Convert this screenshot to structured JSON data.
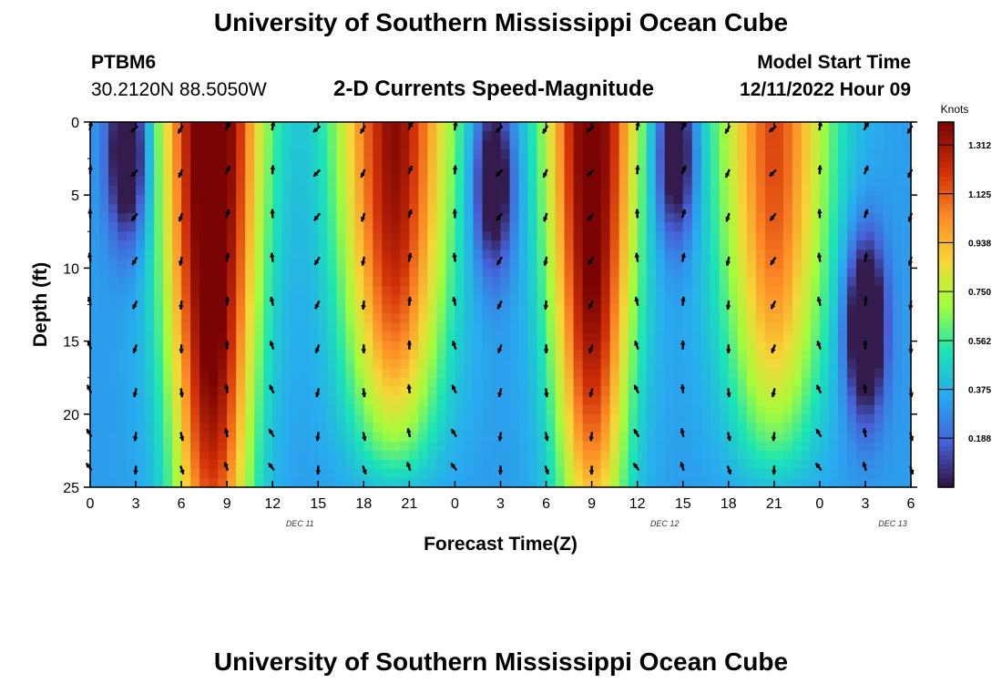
{
  "header": {
    "title": "University of Southern Mississippi Ocean Cube",
    "station": "PTBM6",
    "coords": "30.2120N  88.5050W",
    "plot_title": "2-D Currents Speed-Magnitude",
    "model_start_label": "Model Start Time",
    "model_start_value": "12/11/2022 Hour 09"
  },
  "footer": {
    "title": "University of Southern Mississippi Ocean Cube"
  },
  "chart_data": {
    "type": "heatmap",
    "title": "2-D Currents Speed-Magnitude",
    "xlabel": "Forecast Time(Z)",
    "ylabel": "Depth (ft)",
    "x_ticks": [
      "0",
      "3",
      "6",
      "9",
      "12",
      "15",
      "18",
      "21",
      "0",
      "3",
      "6",
      "9",
      "12",
      "15",
      "18",
      "21",
      "0",
      "3",
      "6"
    ],
    "date_labels": [
      {
        "label": "DEC 11",
        "at_tick": 4.5
      },
      {
        "label": "DEC 12",
        "at_tick": 12.5
      },
      {
        "label": "DEC 13",
        "at_tick": 17.5
      }
    ],
    "y_ticks": [
      0,
      5,
      10,
      15,
      20,
      25
    ],
    "ylim": [
      0,
      25
    ],
    "hours_range": [
      0,
      54
    ],
    "colorbar": {
      "unit": "Knots",
      "range": [
        0,
        1.4
      ],
      "ticks": [
        "1.312",
        "1.125",
        "0.938",
        "0.750",
        "0.562",
        "0.375",
        "0.188"
      ]
    },
    "model": {
      "bands": [
        {
          "hour": 8,
          "amplitude": 1.3,
          "width": 2.6,
          "deep_decay": 0.35
        },
        {
          "hour": 20,
          "amplitude": 1.05,
          "width": 3.0,
          "deep_decay": 0.9
        },
        {
          "hour": 33,
          "amplitude": 1.2,
          "width": 2.4,
          "deep_decay": 0.5
        },
        {
          "hour": 45,
          "amplitude": 0.85,
          "width": 3.0,
          "deep_decay": 0.9
        }
      ],
      "lows": [
        {
          "hour": 2.5,
          "depth": 2,
          "amplitude": -0.55
        },
        {
          "hour": 26.5,
          "depth": 4,
          "amplitude": -0.5
        },
        {
          "hour": 38.5,
          "depth": 2,
          "amplitude": -0.5
        },
        {
          "hour": 51,
          "depth": 14,
          "amplitude": -0.6
        }
      ]
    }
  }
}
